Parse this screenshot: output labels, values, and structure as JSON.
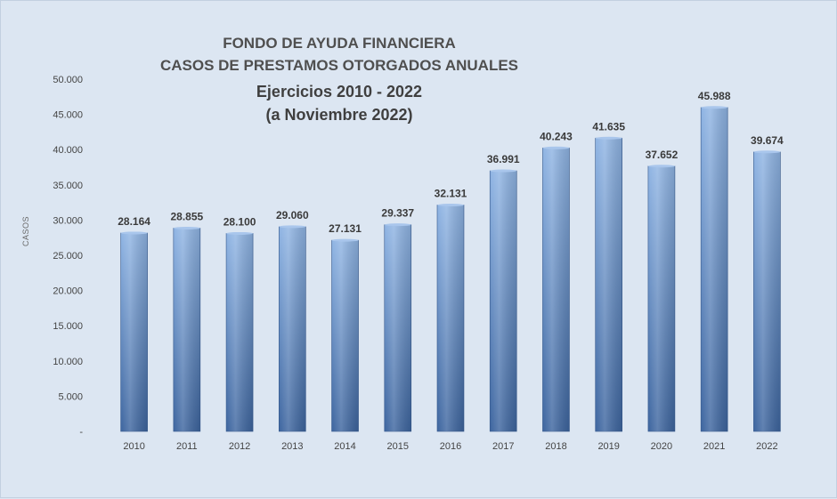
{
  "chart_data": {
    "type": "bar",
    "title_lines": [
      "FONDO DE AYUDA FINANCIERA",
      "CASOS DE PRESTAMOS  OTORGADOS  ANUALES",
      "Ejercicios  2010 - 2022",
      "(a Noviembre 2022)"
    ],
    "ylabel": "CASOS",
    "xlabel": "",
    "categories": [
      "2010",
      "2011",
      "2012",
      "2013",
      "2014",
      "2015",
      "2016",
      "2017",
      "2018",
      "2019",
      "2020",
      "2021",
      "2022"
    ],
    "values": [
      28164,
      28855,
      28100,
      29060,
      27131,
      29337,
      32131,
      36991,
      40243,
      41635,
      37652,
      45988,
      39674
    ],
    "data_labels": [
      "28.164",
      "28.855",
      "28.100",
      "29.060",
      "27.131",
      "29.337",
      "32.131",
      "36.991",
      "40.243",
      "41.635",
      "37.652",
      "45.988",
      "39.674"
    ],
    "yticks": [
      0,
      5000,
      10000,
      15000,
      20000,
      25000,
      30000,
      35000,
      40000,
      45000,
      50000
    ],
    "ytick_labels": [
      "-",
      "5.000",
      "10.000",
      "15.000",
      "20.000",
      "25.000",
      "30.000",
      "35.000",
      "40.000",
      "45.000",
      "50.000"
    ],
    "ylim": [
      0,
      50000
    ],
    "grid": false,
    "colors": {
      "bar_top": "#8fb4e3",
      "bar_bottom": "#3d659f",
      "background": "#dce6f2"
    }
  }
}
